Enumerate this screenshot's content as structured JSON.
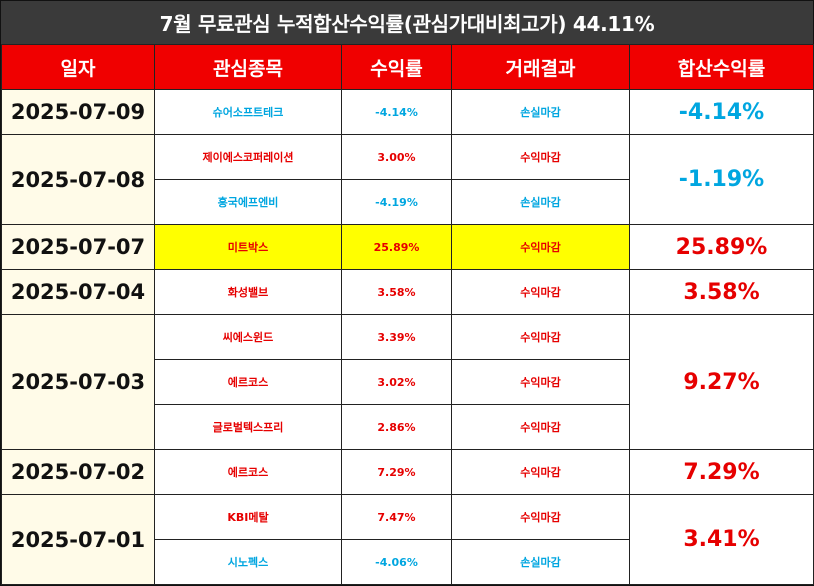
{
  "title": "7월 무료관심 누적합산수익률(관심가대비최고가) 44.11%",
  "headers": [
    "일자",
    "관심종목",
    "수익률",
    "거래결과",
    "합산수익률"
  ],
  "colors": {
    "header_bg": "#f00000",
    "title_bg": "#3a3a3a",
    "profit": "#e60000",
    "loss": "#00a6e0",
    "highlight": "#ffff00",
    "date_bg": "#fffbe8"
  },
  "groups": [
    {
      "date": "2025-07-09",
      "total": "-4.14%",
      "total_color": "blue",
      "rows": [
        {
          "name": "슈어소프트테크",
          "rate": "-4.14%",
          "result": "손실마감",
          "color": "blue"
        }
      ]
    },
    {
      "date": "2025-07-08",
      "total": "-1.19%",
      "total_color": "blue",
      "rows": [
        {
          "name": "제이에스코퍼레이션",
          "rate": "3.00%",
          "result": "수익마감",
          "color": "red"
        },
        {
          "name": "흥국에프엔비",
          "rate": "-4.19%",
          "result": "손실마감",
          "color": "blue"
        }
      ]
    },
    {
      "date": "2025-07-07",
      "total": "25.89%",
      "total_color": "red",
      "highlight": true,
      "rows": [
        {
          "name": "미트박스",
          "rate": "25.89%",
          "result": "수익마감",
          "color": "red"
        }
      ]
    },
    {
      "date": "2025-07-04",
      "total": "3.58%",
      "total_color": "red",
      "rows": [
        {
          "name": "화성밸브",
          "rate": "3.58%",
          "result": "수익마감",
          "color": "red"
        }
      ]
    },
    {
      "date": "2025-07-03",
      "total": "9.27%",
      "total_color": "red",
      "rows": [
        {
          "name": "씨에스윈드",
          "rate": "3.39%",
          "result": "수익마감",
          "color": "red"
        },
        {
          "name": "에르코스",
          "rate": "3.02%",
          "result": "수익마감",
          "color": "red"
        },
        {
          "name": "글로벌텍스프리",
          "rate": "2.86%",
          "result": "수익마감",
          "color": "red"
        }
      ]
    },
    {
      "date": "2025-07-02",
      "total": "7.29%",
      "total_color": "red",
      "rows": [
        {
          "name": "에르코스",
          "rate": "7.29%",
          "result": "수익마감",
          "color": "red"
        }
      ]
    },
    {
      "date": "2025-07-01",
      "total": "3.41%",
      "total_color": "red",
      "rows": [
        {
          "name": "KBI메탈",
          "rate": "7.47%",
          "result": "수익마감",
          "color": "red"
        },
        {
          "name": "시노펙스",
          "rate": "-4.06%",
          "result": "손실마감",
          "color": "blue"
        }
      ]
    }
  ]
}
